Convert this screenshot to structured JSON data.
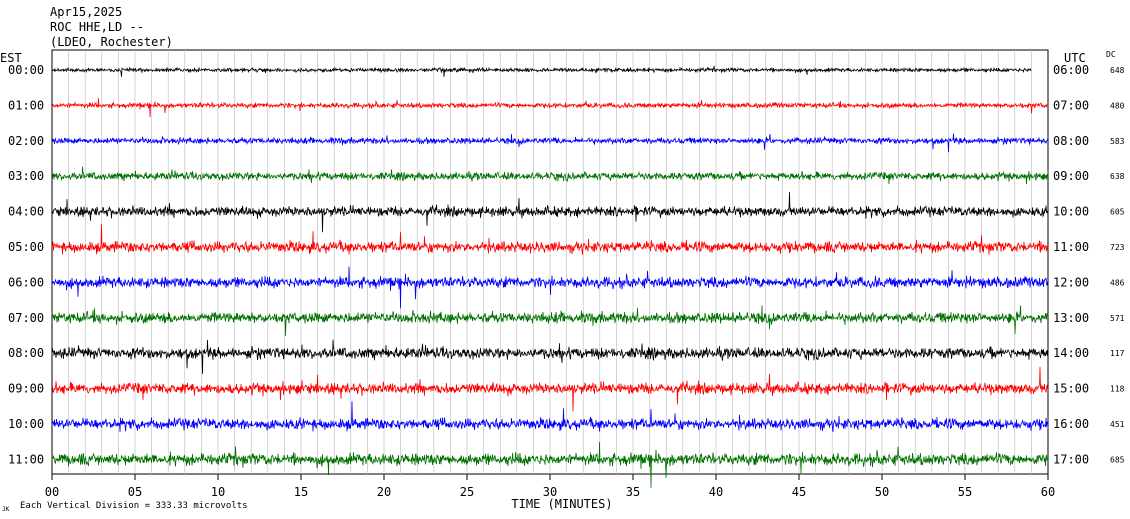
{
  "header": {
    "line1": "Apr15,2025",
    "line2": "ROC HHE,LD --",
    "line3": "(LDEO, Rochester)"
  },
  "chart_data": {
    "type": "line",
    "title": "",
    "xlabel": "TIME (MINUTES)",
    "x_ticks": [
      "00",
      "05",
      "10",
      "15",
      "20",
      "25",
      "30",
      "35",
      "40",
      "45",
      "50",
      "55",
      "60"
    ],
    "xlim": [
      0,
      60
    ],
    "left_axis_label": "EST",
    "right_axis_label": "UTC",
    "dc_label": "DC",
    "grid": "vertical lines every minute",
    "colors": [
      "#000000",
      "#ff0000",
      "#0000ff",
      "#007000"
    ],
    "rows": [
      {
        "est": "00:00",
        "utc": "06:00",
        "dc": "648",
        "color": "#000000",
        "level": 0.35
      },
      {
        "est": "01:00",
        "utc": "07:00",
        "dc": "480",
        "color": "#ff0000",
        "level": 0.45
      },
      {
        "est": "02:00",
        "utc": "08:00",
        "dc": "583",
        "color": "#0000ff",
        "level": 0.55
      },
      {
        "est": "03:00",
        "utc": "09:00",
        "dc": "638",
        "color": "#007000",
        "level": 0.7
      },
      {
        "est": "04:00",
        "utc": "10:00",
        "dc": "605",
        "color": "#000000",
        "level": 0.9
      },
      {
        "est": "05:00",
        "utc": "11:00",
        "dc": "723",
        "color": "#ff0000",
        "level": 1.0
      },
      {
        "est": "06:00",
        "utc": "12:00",
        "dc": "486",
        "color": "#0000ff",
        "level": 1.0
      },
      {
        "est": "07:00",
        "utc": "13:00",
        "dc": "571",
        "color": "#007000",
        "level": 1.0
      },
      {
        "est": "08:00",
        "utc": "14:00",
        "dc": "117",
        "color": "#000000",
        "level": 1.0
      },
      {
        "est": "09:00",
        "utc": "15:00",
        "dc": "118",
        "color": "#ff0000",
        "level": 1.0
      },
      {
        "est": "10:00",
        "utc": "16:00",
        "dc": "451",
        "color": "#0000ff",
        "level": 1.0
      },
      {
        "est": "11:00",
        "utc": "17:00",
        "dc": "685",
        "color": "#007000",
        "level": 1.1
      }
    ],
    "last_trace_end_minute": 59
  },
  "footer": {
    "division_note": "Each Vertical Division = 333.33 microvolts",
    "corner_mark": "JK"
  }
}
